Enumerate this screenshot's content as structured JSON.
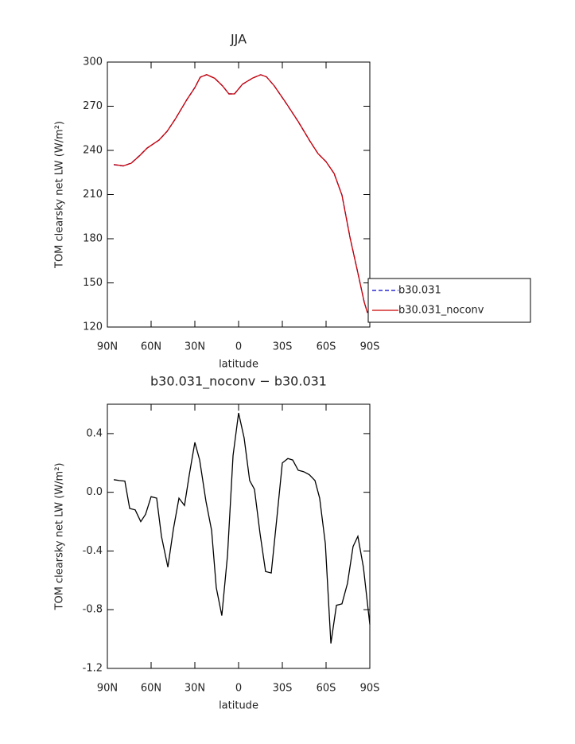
{
  "chart_data": [
    {
      "type": "line",
      "title": "JJA",
      "xlabel": "latitude",
      "ylabel": "TOM clearsky net LW (W/m²)",
      "xlim": [
        90,
        -90
      ],
      "xticks": [
        {
          "value": 90,
          "label": "90N"
        },
        {
          "value": 60,
          "label": "60N"
        },
        {
          "value": 30,
          "label": "30N"
        },
        0,
        {
          "value": -30,
          "label": "30S"
        },
        {
          "value": -60,
          "label": "60S"
        },
        {
          "value": -90,
          "label": "90S"
        }
      ],
      "ylim": [
        120,
        300
      ],
      "yticks": [
        120,
        150,
        180,
        210,
        240,
        270,
        300
      ],
      "legend": "right",
      "x": [
        85.6,
        79.1,
        73.6,
        68.2,
        62.7,
        54.5,
        49,
        43.6,
        35.4,
        30,
        26.3,
        21.9,
        16.4,
        11,
        6.6,
        2.8,
        -2.7,
        -9.8,
        -15.2,
        -19.1,
        -24.5,
        -32.7,
        -40.9,
        -49.1,
        -54.5,
        -60,
        -65.5,
        -70.9,
        -76.4,
        -81.8,
        -86.2,
        -88.4
      ],
      "series": [
        {
          "name": "b30.031",
          "color": "#0000cc",
          "dash": "dashed",
          "values": [
            230.3,
            229.4,
            231.4,
            236.2,
            241.6,
            247,
            253,
            261,
            274.6,
            282.7,
            289.7,
            291.4,
            289,
            283.8,
            278.4,
            278.4,
            284.9,
            289.2,
            291.4,
            290,
            283.8,
            271.9,
            259.5,
            246,
            237.8,
            232.4,
            224.3,
            209.7,
            181,
            156.8,
            136.8,
            129.7
          ]
        },
        {
          "name": "b30.031_noconv",
          "color": "#cc0000",
          "dash": "solid",
          "values": [
            230.4,
            229.5,
            231.3,
            236.1,
            241.6,
            247.1,
            253,
            261,
            274.6,
            282.6,
            289.7,
            291.5,
            289,
            283.8,
            278.3,
            278.4,
            285,
            289.2,
            291.4,
            290,
            283.8,
            272,
            259.6,
            246.1,
            237.8,
            232.3,
            224.4,
            209.6,
            180.9,
            156.8,
            136.8,
            129.6
          ]
        }
      ]
    },
    {
      "type": "line",
      "title": "b30.031_noconv − b30.031",
      "xlabel": "latitude",
      "ylabel": "TOM clearsky net LW (W/m²)",
      "xlim": [
        90,
        -90
      ],
      "xticks": [
        {
          "value": 90,
          "label": "90N"
        },
        {
          "value": 60,
          "label": "60N"
        },
        {
          "value": 30,
          "label": "30N"
        },
        0,
        {
          "value": -30,
          "label": "30S"
        },
        {
          "value": -60,
          "label": "60S"
        },
        {
          "value": -90,
          "label": "90S"
        }
      ],
      "ylim": [
        -1.2,
        0.6
      ],
      "yticks": [
        -1.2,
        -0.8,
        -0.4,
        {
          "value": 0,
          "label": "0.0"
        },
        0.4
      ],
      "x": [
        85.6,
        81.8,
        78,
        74.7,
        70.9,
        67.1,
        63.8,
        60,
        56.2,
        52.9,
        48.5,
        44.7,
        40.9,
        37.1,
        33.8,
        30,
        26.7,
        22.4,
        18.5,
        15.3,
        11.5,
        7.6,
        3.8,
        0,
        -3.8,
        -7.6,
        -10.9,
        -14.7,
        -18.5,
        -22.4,
        -26.2,
        -30,
        -33.8,
        -37.1,
        -40.9,
        -44.7,
        -48.5,
        -52.4,
        -55.6,
        -59.5,
        -63.3,
        -67.1,
        -70.9,
        -74.7,
        -78.5,
        -81.8,
        -85.6,
        -90
      ],
      "series": [
        {
          "color": "#000000",
          "dash": "solid",
          "values": [
            0.086,
            0.08,
            0.076,
            -0.11,
            -0.12,
            -0.2,
            -0.15,
            -0.03,
            -0.04,
            -0.3,
            -0.51,
            -0.25,
            -0.04,
            -0.09,
            0.12,
            0.34,
            0.22,
            -0.06,
            -0.26,
            -0.65,
            -0.84,
            -0.43,
            0.25,
            0.54,
            0.37,
            0.08,
            0.02,
            -0.28,
            -0.54,
            -0.55,
            -0.18,
            0.2,
            0.23,
            0.22,
            0.15,
            0.14,
            0.12,
            0.08,
            -0.04,
            -0.35,
            -1.03,
            -0.77,
            -0.76,
            -0.62,
            -0.37,
            -0.3,
            -0.51,
            -0.9
          ]
        }
      ]
    }
  ]
}
